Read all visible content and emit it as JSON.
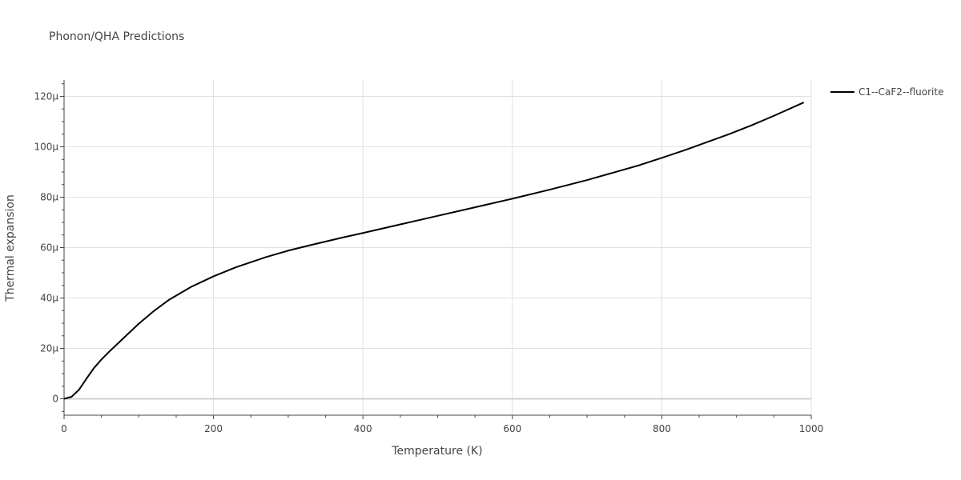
{
  "chart_data": {
    "type": "line",
    "title": "Phonon/QHA Predictions",
    "xlabel": "Temperature (K)",
    "ylabel": "Thermal expansion",
    "xlim": [
      0,
      1000
    ],
    "ylim": [
      -6.5,
      126.5
    ],
    "x_ticks": [
      0,
      200,
      400,
      600,
      800,
      1000
    ],
    "x_tick_labels": [
      "0",
      "200",
      "400",
      "600",
      "800",
      "1000"
    ],
    "y_ticks": [
      0,
      20,
      40,
      60,
      80,
      100,
      120
    ],
    "y_tick_labels": [
      "0",
      "20μ",
      "40μ",
      "60μ",
      "80μ",
      "100μ",
      "120μ"
    ],
    "grid": true,
    "legend_position": "top-right",
    "colors": {
      "grid": "#e1e1e1",
      "zeroline": "#d0d0d0",
      "axis": "#444444",
      "line": "#000000"
    },
    "series": [
      {
        "name": "C1--CaF2--fluorite",
        "x": [
          0,
          10,
          20,
          30,
          40,
          50,
          60,
          70,
          80,
          100,
          120,
          140,
          170,
          200,
          230,
          270,
          300,
          330,
          370,
          400,
          450,
          500,
          550,
          600,
          650,
          700,
          750,
          770,
          800,
          830,
          860,
          890,
          920,
          950,
          990
        ],
        "y": [
          0,
          0.8,
          3.6,
          8.0,
          12.2,
          15.6,
          18.6,
          21.4,
          24.2,
          29.8,
          34.8,
          39.2,
          44.4,
          48.6,
          52.2,
          56.2,
          58.8,
          61.0,
          63.8,
          65.8,
          69.2,
          72.6,
          76.0,
          79.4,
          83.0,
          86.8,
          91.0,
          92.7,
          95.6,
          98.6,
          101.8,
          105.0,
          108.5,
          112.3,
          117.6
        ]
      }
    ]
  }
}
